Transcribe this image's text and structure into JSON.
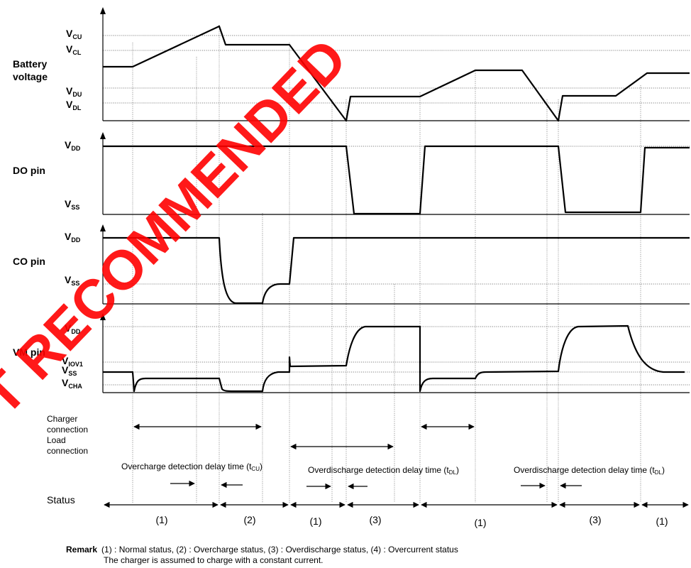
{
  "watermark": "NOT RECOMMENDED",
  "panels": {
    "battery": {
      "title_line1": "Battery",
      "title_line2": "voltage",
      "levels": [
        {
          "main": "V",
          "sub": "CU"
        },
        {
          "main": "V",
          "sub": "CL"
        },
        {
          "main": "V",
          "sub": "DU"
        },
        {
          "main": "V",
          "sub": "DL"
        }
      ]
    },
    "do_pin": {
      "title": "DO pin",
      "levels": [
        {
          "main": "V",
          "sub": "DD"
        },
        {
          "main": "V",
          "sub": "SS"
        }
      ]
    },
    "co_pin": {
      "title": "CO pin",
      "levels": [
        {
          "main": "V",
          "sub": "DD"
        },
        {
          "main": "V",
          "sub": "SS"
        }
      ]
    },
    "vm_pin": {
      "title": "VM pin",
      "levels": [
        {
          "main": "V",
          "sub": "DD"
        },
        {
          "main": "V",
          "sub": "IOV1"
        },
        {
          "main": "V",
          "sub": "SS"
        },
        {
          "main": "V",
          "sub": "CHA"
        }
      ]
    }
  },
  "connections": {
    "charger_line1": "Charger",
    "charger_line2": "connection",
    "load_line1": "Load",
    "load_line2": "connection"
  },
  "delays": [
    {
      "text": "Overcharge detection delay time (t",
      "sub": "CU",
      "close": ")"
    },
    {
      "text": "Overdischarge detection delay time (t",
      "sub": "DL",
      "close": ")"
    },
    {
      "text": "Overdischarge detection delay time (t",
      "sub": "DL",
      "close": ")"
    }
  ],
  "status": {
    "label": "Status",
    "segments": [
      "(1)",
      "(2)",
      "(1)",
      "(3)",
      "(1)",
      "(3)",
      "(1)"
    ]
  },
  "remark": {
    "label": "Remark",
    "line1": "(1) : Normal status, (2) : Overcharge status, (3) : Overdischarge status, (4) : Overcurrent status",
    "line2": "The charger is assumed to charge with a constant current."
  }
}
